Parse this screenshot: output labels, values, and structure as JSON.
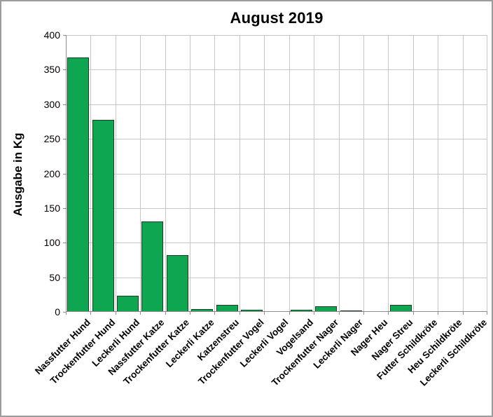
{
  "window": {
    "background_color": "#ffffff",
    "frame_border_color": "#9b9b9b"
  },
  "chart_data": {
    "type": "bar",
    "title": "August 2019",
    "xlabel": "",
    "ylabel": "Ausgabe in Kg",
    "categories": [
      "Nassfutter Hund",
      "Trockenfutter Hund",
      "Leckerli Hund",
      "Nassfutter Katze",
      "Trockenfutter Katze",
      "Leckerli Katze",
      "Katzenstreu",
      "Trockenfutter Vogel",
      "Leckerli Vogel",
      "Vogelsand",
      "Trockenfutter Nager",
      "Leckerli Nager",
      "Nager Heu",
      "Nager Streu",
      "Futter Schildkröte",
      "Heu Schildkröte",
      "Leckerli Schildkröte"
    ],
    "values": [
      368,
      277,
      23,
      131,
      82,
      4,
      10,
      3,
      0,
      3,
      8,
      2,
      0,
      10,
      0,
      0,
      0
    ],
    "ylim": [
      0,
      400
    ],
    "ytick_step": 50,
    "yticks": [
      0,
      50,
      100,
      150,
      200,
      250,
      300,
      350,
      400
    ],
    "grid": true,
    "legend_position": "none",
    "x_label_rotation_deg": 45,
    "colors": {
      "bar_fill": "#0fa651",
      "bar_border": "#1e4020",
      "gridline": "#c6c6c6",
      "axis": "#8c8c8c",
      "text": "#000000"
    }
  }
}
